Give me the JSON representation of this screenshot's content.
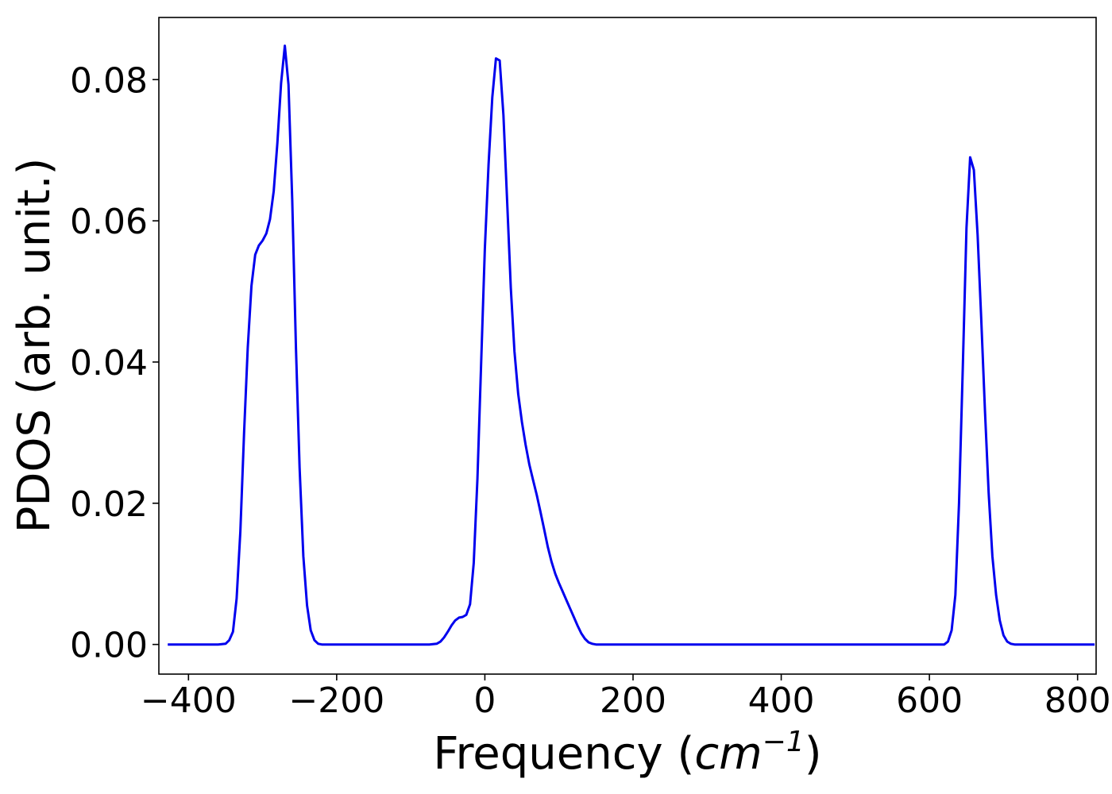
{
  "chart_data": {
    "type": "line",
    "title": "",
    "xlabel": "Frequency (cm−1)",
    "ylabel": "PDOS (arb. unit.)",
    "xlim": [
      -440,
      825
    ],
    "ylim": [
      -0.0042,
      0.0888
    ],
    "grid": false,
    "xticks": [
      -400,
      -200,
      0,
      200,
      400,
      600,
      800
    ],
    "xtick_labels": [
      "−400",
      "−200",
      "0",
      "200",
      "400",
      "600",
      "800"
    ],
    "yticks": [
      0.0,
      0.02,
      0.04,
      0.06,
      0.08
    ],
    "ytick_labels": [
      "0.00",
      "0.02",
      "0.04",
      "0.06",
      "0.08"
    ],
    "series": [
      {
        "color": "#0000ee",
        "points": [
          [
            -428,
            0.0
          ],
          [
            -360,
            0.0
          ],
          [
            -350,
            0.0001
          ],
          [
            -345,
            0.0006
          ],
          [
            -340,
            0.0018
          ],
          [
            -335,
            0.0065
          ],
          [
            -330,
            0.016
          ],
          [
            -325,
            0.03
          ],
          [
            -320,
            0.042
          ],
          [
            -315,
            0.0508
          ],
          [
            -310,
            0.0552
          ],
          [
            -305,
            0.0565
          ],
          [
            -300,
            0.0572
          ],
          [
            -295,
            0.0582
          ],
          [
            -290,
            0.0602
          ],
          [
            -285,
            0.0642
          ],
          [
            -280,
            0.071
          ],
          [
            -275,
            0.0795
          ],
          [
            -270,
            0.0848
          ],
          [
            -265,
            0.0793
          ],
          [
            -260,
            0.063
          ],
          [
            -255,
            0.042
          ],
          [
            -250,
            0.025
          ],
          [
            -245,
            0.0125
          ],
          [
            -240,
            0.0055
          ],
          [
            -235,
            0.002
          ],
          [
            -230,
            0.0006
          ],
          [
            -225,
            0.0001
          ],
          [
            -220,
            0.0
          ],
          [
            -75,
            0.0
          ],
          [
            -65,
            0.0001
          ],
          [
            -60,
            0.0004
          ],
          [
            -55,
            0.001
          ],
          [
            -50,
            0.0018
          ],
          [
            -45,
            0.0027
          ],
          [
            -40,
            0.0034
          ],
          [
            -35,
            0.0038
          ],
          [
            -30,
            0.0039
          ],
          [
            -25,
            0.0042
          ],
          [
            -20,
            0.0057
          ],
          [
            -15,
            0.0115
          ],
          [
            -10,
            0.0235
          ],
          [
            -5,
            0.04
          ],
          [
            0,
            0.056
          ],
          [
            5,
            0.068
          ],
          [
            10,
            0.0775
          ],
          [
            15,
            0.083
          ],
          [
            20,
            0.0827
          ],
          [
            25,
            0.075
          ],
          [
            30,
            0.063
          ],
          [
            35,
            0.0505
          ],
          [
            40,
            0.0415
          ],
          [
            45,
            0.0355
          ],
          [
            50,
            0.0315
          ],
          [
            55,
            0.0283
          ],
          [
            60,
            0.0255
          ],
          [
            65,
            0.0233
          ],
          [
            70,
            0.0212
          ],
          [
            75,
            0.0188
          ],
          [
            80,
            0.0163
          ],
          [
            85,
            0.0138
          ],
          [
            90,
            0.0117
          ],
          [
            95,
            0.01
          ],
          [
            100,
            0.0087
          ],
          [
            105,
            0.0075
          ],
          [
            110,
            0.0063
          ],
          [
            115,
            0.0051
          ],
          [
            120,
            0.0039
          ],
          [
            125,
            0.0027
          ],
          [
            130,
            0.0016
          ],
          [
            135,
            0.0008
          ],
          [
            140,
            0.0003
          ],
          [
            145,
            0.0001
          ],
          [
            150,
            0.0
          ],
          [
            620,
            0.0
          ],
          [
            625,
            0.0004
          ],
          [
            630,
            0.002
          ],
          [
            635,
            0.007
          ],
          [
            640,
            0.02
          ],
          [
            645,
            0.039
          ],
          [
            650,
            0.059
          ],
          [
            655,
            0.069
          ],
          [
            660,
            0.0672
          ],
          [
            665,
            0.058
          ],
          [
            670,
            0.046
          ],
          [
            675,
            0.033
          ],
          [
            680,
            0.0215
          ],
          [
            685,
            0.0125
          ],
          [
            690,
            0.007
          ],
          [
            695,
            0.0034
          ],
          [
            700,
            0.0013
          ],
          [
            705,
            0.0004
          ],
          [
            710,
            0.0001
          ],
          [
            715,
            0.0
          ],
          [
            823,
            0.0
          ]
        ]
      }
    ]
  }
}
